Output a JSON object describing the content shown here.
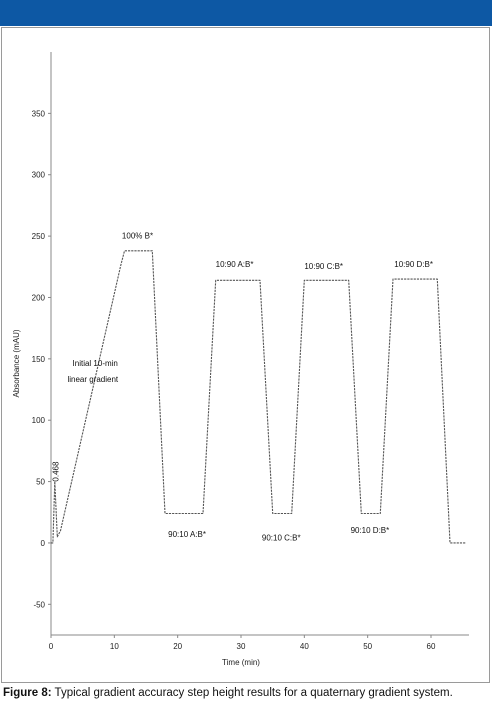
{
  "header": {
    "bar_color": "#0d58a4"
  },
  "caption": {
    "label": "Figure 8:",
    "text": " Typical gradient accuracy step height results for a quaternary gradient system."
  },
  "chart_data": {
    "type": "line",
    "xlabel": "Time (min)",
    "ylabel": "Absorbance (mAU)",
    "xlim": [
      0,
      66
    ],
    "ylim": [
      -75,
      400
    ],
    "x_ticks": [
      0,
      10,
      20,
      30,
      40,
      50,
      60
    ],
    "y_ticks": [
      -50,
      0,
      50,
      100,
      150,
      200,
      250,
      300,
      350
    ],
    "grid": false,
    "line_color": "#555555",
    "series": [
      {
        "x": [
          0,
          0.3,
          0.6,
          1.0,
          1.5,
          11.0,
          11.6,
          16.0,
          18.0,
          24.0,
          26.0,
          33.0,
          35.0,
          38.0,
          40.0,
          47.0,
          49.0,
          52.0,
          54.0,
          61.0,
          63.0,
          65.5
        ],
        "y": [
          0,
          0,
          50,
          5,
          10,
          226,
          238,
          238,
          24,
          24,
          214,
          214,
          24,
          24,
          214,
          214,
          24,
          24,
          215,
          215,
          0,
          0
        ]
      }
    ],
    "annotations": [
      {
        "text": "0.468",
        "x": 1.2,
        "y": 50,
        "rotate": true
      },
      {
        "text": "100% B*",
        "x": 11.2,
        "y": 248
      },
      {
        "text": "Initial 10-min",
        "x": 3.4,
        "y": 144
      },
      {
        "text": "linear gradient",
        "x": 2.6,
        "y": 131
      },
      {
        "text": "10:90 A:B*",
        "x": 26.0,
        "y": 225
      },
      {
        "text": "10:90 C:B*",
        "x": 40.0,
        "y": 223
      },
      {
        "text": "10:90 D:B*",
        "x": 54.2,
        "y": 225
      },
      {
        "text": "90:10 A:B*",
        "x": 18.5,
        "y": 5
      },
      {
        "text": "90:10 C:B*",
        "x": 33.3,
        "y": 2
      },
      {
        "text": "90:10 D:B*",
        "x": 47.3,
        "y": 8
      }
    ]
  }
}
